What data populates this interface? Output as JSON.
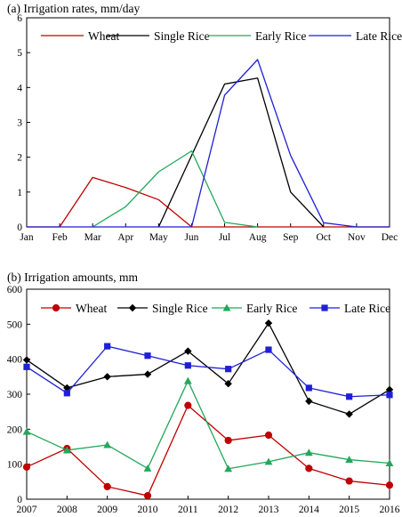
{
  "chart_data": [
    {
      "type": "line",
      "title": "(a) Irrigation rates, mm/day",
      "xlabel": "",
      "ylabel": "",
      "categories": [
        "Jan",
        "Feb",
        "Mar",
        "Apr",
        "May",
        "Jun",
        "Jul",
        "Aug",
        "Sep",
        "Oct",
        "Nov",
        "Dec"
      ],
      "ylim": [
        0,
        6
      ],
      "yticks": [
        0,
        1,
        2,
        3,
        4,
        5,
        6
      ],
      "grid": false,
      "legend": "top",
      "series": [
        {
          "name": "Wheat",
          "color": "#c00000",
          "marker": "none",
          "points": [
            [
              0,
              0
            ],
            [
              1,
              0
            ],
            [
              2,
              1.42
            ],
            [
              3,
              1.13
            ],
            [
              4,
              0.78
            ],
            [
              5,
              0
            ],
            [
              6,
              0
            ],
            [
              7,
              0
            ],
            [
              8,
              0
            ],
            [
              9,
              0
            ],
            [
              10,
              0
            ],
            [
              11,
              0
            ]
          ]
        },
        {
          "name": "Single Rice",
          "color": "#000000",
          "marker": "none",
          "points": [
            [
              4,
              0
            ],
            [
              6,
              4.1
            ],
            [
              7,
              4.27
            ],
            [
              8,
              1.0
            ],
            [
              9,
              0
            ]
          ]
        },
        {
          "name": "Early Rice",
          "color": "#21a85a",
          "marker": "none",
          "points": [
            [
              2,
              0
            ],
            [
              3,
              0.58
            ],
            [
              4,
              1.58
            ],
            [
              5,
              2.18
            ],
            [
              6,
              0.13
            ],
            [
              7,
              0
            ]
          ]
        },
        {
          "name": "Late Rice",
          "color": "#1f1fd6",
          "marker": "none",
          "points": [
            [
              0,
              0
            ],
            [
              1,
              0
            ],
            [
              2,
              0
            ],
            [
              3,
              0
            ],
            [
              4,
              0
            ],
            [
              5,
              0
            ],
            [
              6,
              3.78
            ],
            [
              7,
              4.8
            ],
            [
              8,
              2.05
            ],
            [
              9,
              0.12
            ],
            [
              10,
              0
            ],
            [
              11,
              0
            ]
          ]
        }
      ]
    },
    {
      "type": "line",
      "title": "(b) Irrigation amounts, mm",
      "xlabel": "",
      "ylabel": "",
      "categories": [
        "2007",
        "2008",
        "2009",
        "2010",
        "2011",
        "2012",
        "2013",
        "2014",
        "2015",
        "2016"
      ],
      "ylim": [
        0,
        600
      ],
      "yticks": [
        0,
        100,
        200,
        300,
        400,
        500,
        600
      ],
      "grid": false,
      "legend": "top",
      "series": [
        {
          "name": "Wheat",
          "color": "#c00000",
          "marker": "circle",
          "values": [
            92,
            145,
            36,
            10,
            268,
            168,
            183,
            88,
            52,
            40
          ]
        },
        {
          "name": "Single Rice",
          "color": "#000000",
          "marker": "diamond",
          "values": [
            398,
            318,
            350,
            357,
            423,
            330,
            503,
            280,
            243,
            313
          ]
        },
        {
          "name": "Early Rice",
          "color": "#21a85a",
          "marker": "triangle",
          "values": [
            193,
            140,
            155,
            88,
            338,
            87,
            107,
            133,
            113,
            103
          ]
        },
        {
          "name": "Late Rice",
          "color": "#1f1fd6",
          "marker": "square",
          "values": [
            378,
            303,
            437,
            410,
            382,
            372,
            427,
            318,
            293,
            298
          ]
        }
      ]
    }
  ]
}
